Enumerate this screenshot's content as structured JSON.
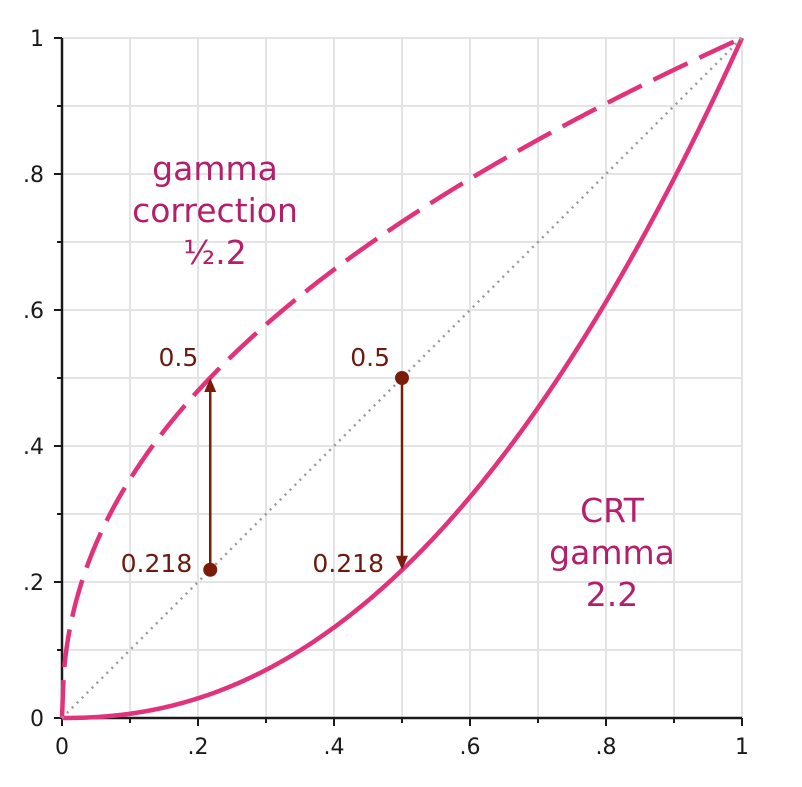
{
  "chart_data": {
    "type": "line",
    "title": "",
    "xlabel": "",
    "ylabel": "",
    "xlim": [
      0,
      1
    ],
    "ylim": [
      0,
      1
    ],
    "grid": true,
    "x_ticks": [
      "0",
      ".2",
      ".4",
      ".6",
      ".8",
      "1"
    ],
    "y_ticks": [
      "0",
      ".2",
      ".4",
      ".6",
      ".8",
      "1"
    ],
    "series": [
      {
        "label_lines": [
          "gamma",
          "correction",
          "½.2"
        ],
        "style": "dashed",
        "exponent": 0.4545,
        "color": "#e0337c"
      },
      {
        "label_lines": [
          "CRT",
          "gamma",
          "2.2"
        ],
        "style": "solid",
        "exponent": 2.2,
        "color": "#e0337c"
      },
      {
        "style": "dotted",
        "exponent": 1,
        "color": "#9a9a9a"
      }
    ],
    "markers": [
      {
        "x": 0.218,
        "from_y": 0.218,
        "to_y": 0.5,
        "label_start": "0.218",
        "label_end": "0.5"
      },
      {
        "x": 0.5,
        "from_y": 0.5,
        "to_y": 0.218,
        "label_start": "0.5",
        "label_end": "0.218"
      }
    ],
    "marker_color": "#7a1c0c"
  }
}
